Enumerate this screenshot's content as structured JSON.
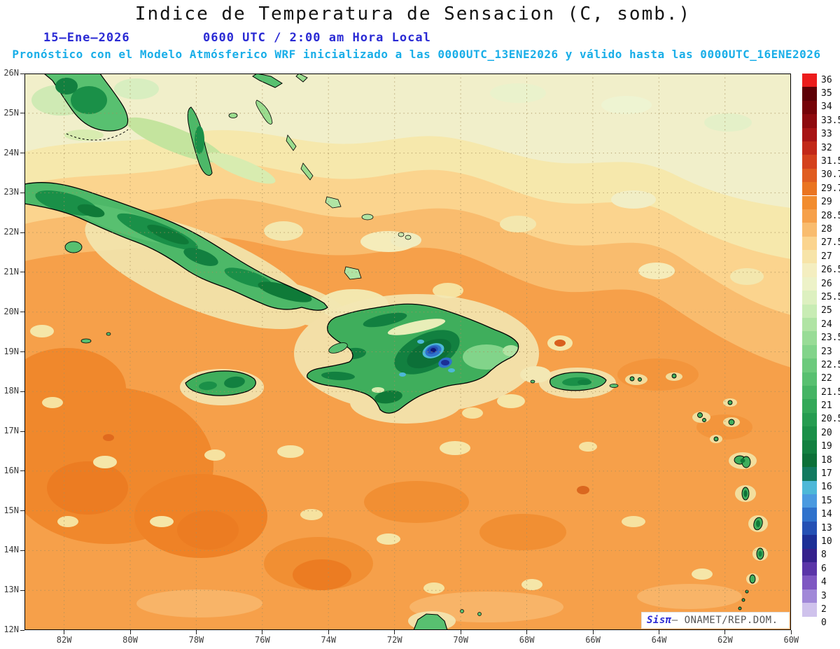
{
  "title": "Indice de Temperatura de Sensacion (C, somb.)",
  "subtitle": {
    "date": "15–Ene–2026",
    "time": "0600 UTC / 2:00 am Hora Local",
    "forecast": "Pronóstico con el Modelo Atmósferico WRF inicializado a las 0000UTC_13ENE2026 y válido hasta las  0000UTC_16ENE2026"
  },
  "watermark": {
    "brand": "Sisπ",
    "text": "– ONAMET/REP.DOM."
  },
  "colors": {
    "title_text": "#141414",
    "datetime_text": "#2a2ad4",
    "forecast_text": "#19aee8",
    "ocean_base": "#f6a04a",
    "land_green": "#3fae5c",
    "cold_core_blue": "#1c2f96"
  },
  "axes": {
    "lat_ticks": [
      "26N",
      "25N",
      "24N",
      "23N",
      "22N",
      "21N",
      "20N",
      "19N",
      "18N",
      "17N",
      "16N",
      "15N",
      "14N",
      "13N",
      "12N"
    ],
    "lon_ticks": [
      "82W",
      "80W",
      "78W",
      "76W",
      "74W",
      "72W",
      "70W",
      "68W",
      "66W",
      "64W",
      "62W",
      "60W"
    ]
  },
  "colorbar": {
    "levels": [
      36,
      35,
      34,
      33.5,
      33,
      32,
      31.5,
      30.7,
      29.7,
      29,
      28.5,
      28,
      27.5,
      27,
      26.5,
      26,
      25.5,
      25,
      24,
      23.5,
      23,
      22.5,
      22,
      21.5,
      21,
      20.5,
      20,
      19,
      18,
      17,
      16,
      15,
      14,
      13,
      10,
      8,
      6,
      4,
      3,
      2,
      0
    ],
    "colors": [
      "#ec1c1c",
      "#5e0006",
      "#760308",
      "#8e0a0e",
      "#a81414",
      "#c22818",
      "#d4411c",
      "#e05c20",
      "#ea7420",
      "#f28c2e",
      "#f6a04a",
      "#f9bc6e",
      "#fbd48e",
      "#f7e4a8",
      "#f4eec0",
      "#edf2c8",
      "#ddf0c0",
      "#c8ecb4",
      "#b0e4a4",
      "#98dc96",
      "#82d48a",
      "#6cca7c",
      "#58c070",
      "#45b464",
      "#33a858",
      "#259c50",
      "#1a9048",
      "#128040",
      "#0c7038",
      "#127a60",
      "#4db8d8",
      "#4a9ae0",
      "#2f72cc",
      "#2450b4",
      "#1c2f96",
      "#35218c",
      "#5a35a8",
      "#7e57c2",
      "#a188d8",
      "#cfc2ec",
      "#ffffff"
    ]
  },
  "chart_data": {
    "type": "heatmap",
    "title": "Indice de Temperatura de Sensacion (C, somb.)",
    "units": "°C",
    "valid_date": "15–Ene–2026",
    "valid_time": "0600 UTC / 2:00 am Hora Local",
    "model": "WRF",
    "initialized": "0000UTC_13ENE2026",
    "valid_until": "0000UTC_16ENE2026",
    "source": "ONAMET/REP.DOM.",
    "extent": {
      "lon_min": -83.2,
      "lon_max": -60.0,
      "lat_min": 12,
      "lat_max": 26
    },
    "x_ticks": [
      "82W",
      "80W",
      "78W",
      "76W",
      "74W",
      "72W",
      "70W",
      "68W",
      "66W",
      "64W",
      "62W",
      "60W"
    ],
    "y_ticks": [
      "26N",
      "25N",
      "24N",
      "23N",
      "22N",
      "21N",
      "20N",
      "19N",
      "18N",
      "17N",
      "16N",
      "15N",
      "14N",
      "13N",
      "12N"
    ],
    "levels_c": [
      36,
      35,
      34,
      33.5,
      33,
      32,
      31.5,
      30.7,
      29.7,
      29,
      28.5,
      28,
      27.5,
      27,
      26.5,
      26,
      25.5,
      25,
      24,
      23.5,
      23,
      22.5,
      22,
      21.5,
      21,
      20.5,
      20,
      19,
      18,
      17,
      16,
      15,
      14,
      13,
      10,
      8,
      6,
      4,
      3,
      2,
      0
    ],
    "palette": [
      "#ec1c1c",
      "#5e0006",
      "#760308",
      "#8e0a0e",
      "#a81414",
      "#c22818",
      "#d4411c",
      "#e05c20",
      "#ea7420",
      "#f28c2e",
      "#f6a04a",
      "#f9bc6e",
      "#fbd48e",
      "#f7e4a8",
      "#f4eec0",
      "#edf2c8",
      "#ddf0c0",
      "#c8ecb4",
      "#b0e4a4",
      "#98dc96",
      "#82d48a",
      "#6cca7c",
      "#58c070",
      "#45b464",
      "#33a858",
      "#259c50",
      "#1a9048",
      "#128040",
      "#0c7038",
      "#127a60",
      "#4db8d8",
      "#4a9ae0",
      "#2f72cc",
      "#2450b4",
      "#1c2f96",
      "#35218c",
      "#5a35a8",
      "#7e57c2",
      "#a188d8",
      "#cfc2ec",
      "#ffffff"
    ],
    "legend_position": "right",
    "grid": "dotted, 1° latitude x 2° longitude",
    "regions": [
      {
        "area": "open Caribbean Sea",
        "heat_index_c": 28.5
      },
      {
        "area": "Atlantic waters north of 23N",
        "heat_index_c": 26.5
      },
      {
        "area": "Gulf / Bahamas banks",
        "heat_index_c": 25
      },
      {
        "area": "Florida tip",
        "heat_index_c": 22
      },
      {
        "area": "Cuba interior",
        "heat_index_c": 21
      },
      {
        "area": "Cuba mountain ridges",
        "heat_index_c": 18.5
      },
      {
        "area": "Jamaica interior",
        "heat_index_c": 21
      },
      {
        "area": "Hispaniola coastal lowlands",
        "heat_index_c": 24
      },
      {
        "area": "Cordillera Central (Rep. Dom.) peaks",
        "heat_index_c": 10
      },
      {
        "area": "Puerto Rico interior",
        "heat_index_c": 21
      },
      {
        "area": "Lesser Antilles islands",
        "heat_index_c": 22.5
      },
      {
        "area": "south-central Caribbean",
        "heat_index_c": 29
      }
    ]
  }
}
